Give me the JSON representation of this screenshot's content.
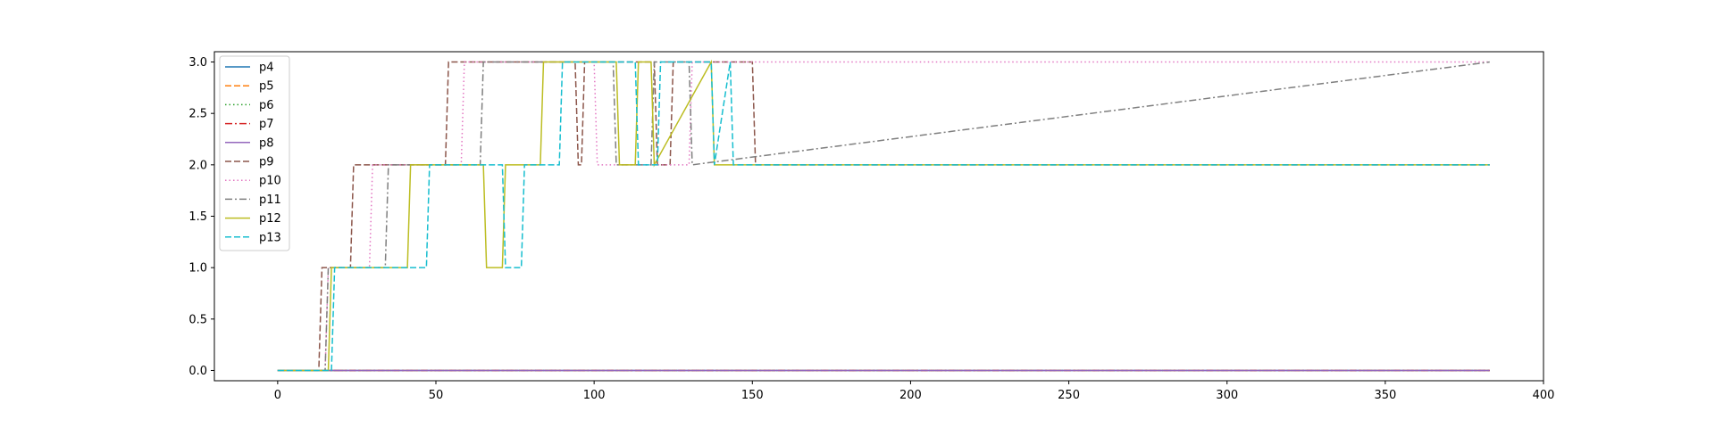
{
  "chart_data": {
    "type": "line",
    "title": "",
    "xlabel": "",
    "ylabel": "",
    "xlim": [
      -20,
      400
    ],
    "ylim": [
      -0.1,
      3.1
    ],
    "xticks": [
      0,
      50,
      100,
      150,
      200,
      250,
      300,
      350,
      400
    ],
    "yticks": [
      0.0,
      0.5,
      1.0,
      1.5,
      2.0,
      2.5,
      3.0
    ],
    "xtick_labels": [
      "0",
      "50",
      "100",
      "150",
      "200",
      "250",
      "300",
      "350",
      "400"
    ],
    "ytick_labels": [
      "0.0",
      "0.5",
      "1.0",
      "1.5",
      "2.0",
      "2.5",
      "3.0"
    ],
    "grid": false,
    "legend_position": "upper-left",
    "series": [
      {
        "name": "p4",
        "color": "#1f77b4",
        "dash": "solid",
        "x": [
          0,
          383
        ],
        "y": [
          0,
          0
        ]
      },
      {
        "name": "p5",
        "color": "#ff7f0e",
        "dash": "dashed",
        "x": [
          0,
          383
        ],
        "y": [
          0,
          0
        ]
      },
      {
        "name": "p6",
        "color": "#2ca02c",
        "dash": "dotted",
        "x": [
          0,
          383
        ],
        "y": [
          0,
          0
        ]
      },
      {
        "name": "p7",
        "color": "#d62728",
        "dash": "dashdot",
        "x": [
          0,
          383
        ],
        "y": [
          0,
          0
        ]
      },
      {
        "name": "p8",
        "color": "#9467bd",
        "dash": "solid",
        "x": [
          0,
          383
        ],
        "y": [
          0,
          0
        ]
      },
      {
        "name": "p9",
        "color": "#8c564b",
        "dash": "dashed",
        "x": [
          0,
          13,
          14,
          23,
          24,
          53,
          54,
          94,
          95,
          96,
          97,
          119,
          120,
          124,
          125,
          150,
          151,
          383
        ],
        "y": [
          0,
          0,
          1,
          1,
          2,
          2,
          3,
          3,
          2,
          2,
          3,
          3,
          2,
          2,
          3,
          3,
          2,
          2
        ]
      },
      {
        "name": "p10",
        "color": "#e377c2",
        "dash": "dotted",
        "x": [
          0,
          15,
          16,
          29,
          30,
          58,
          59,
          100,
          101,
          130,
          131,
          383
        ],
        "y": [
          0,
          0,
          1,
          1,
          2,
          2,
          3,
          3,
          2,
          2,
          3,
          3
        ]
      },
      {
        "name": "p11",
        "color": "#7f7f7f",
        "dash": "dashdot",
        "x": [
          0,
          15,
          16,
          34,
          35,
          64,
          65,
          106,
          107,
          118,
          119,
          130,
          131,
          383
        ],
        "y": [
          0,
          0,
          1,
          1,
          2,
          2,
          3,
          3,
          2,
          2,
          3,
          3,
          2,
          3
        ]
      },
      {
        "name": "p12",
        "color": "#bcbd22",
        "dash": "solid",
        "x": [
          0,
          16,
          17,
          41,
          42,
          65,
          66,
          71,
          72,
          83,
          84,
          107,
          108,
          113,
          114,
          118,
          119,
          137,
          138,
          383
        ],
        "y": [
          0,
          0,
          1,
          1,
          2,
          2,
          1,
          1,
          2,
          2,
          3,
          3,
          2,
          2,
          3,
          3,
          2,
          3,
          2,
          2
        ]
      },
      {
        "name": "p13",
        "color": "#17becf",
        "dash": "dashed",
        "x": [
          0,
          17,
          18,
          47,
          48,
          71,
          72,
          77,
          78,
          89,
          90,
          113,
          114,
          120,
          121,
          137,
          138,
          143,
          144,
          383
        ],
        "y": [
          0,
          0,
          1,
          1,
          2,
          2,
          1,
          1,
          2,
          2,
          3,
          3,
          2,
          2,
          3,
          3,
          2,
          3,
          2,
          2
        ]
      }
    ]
  }
}
